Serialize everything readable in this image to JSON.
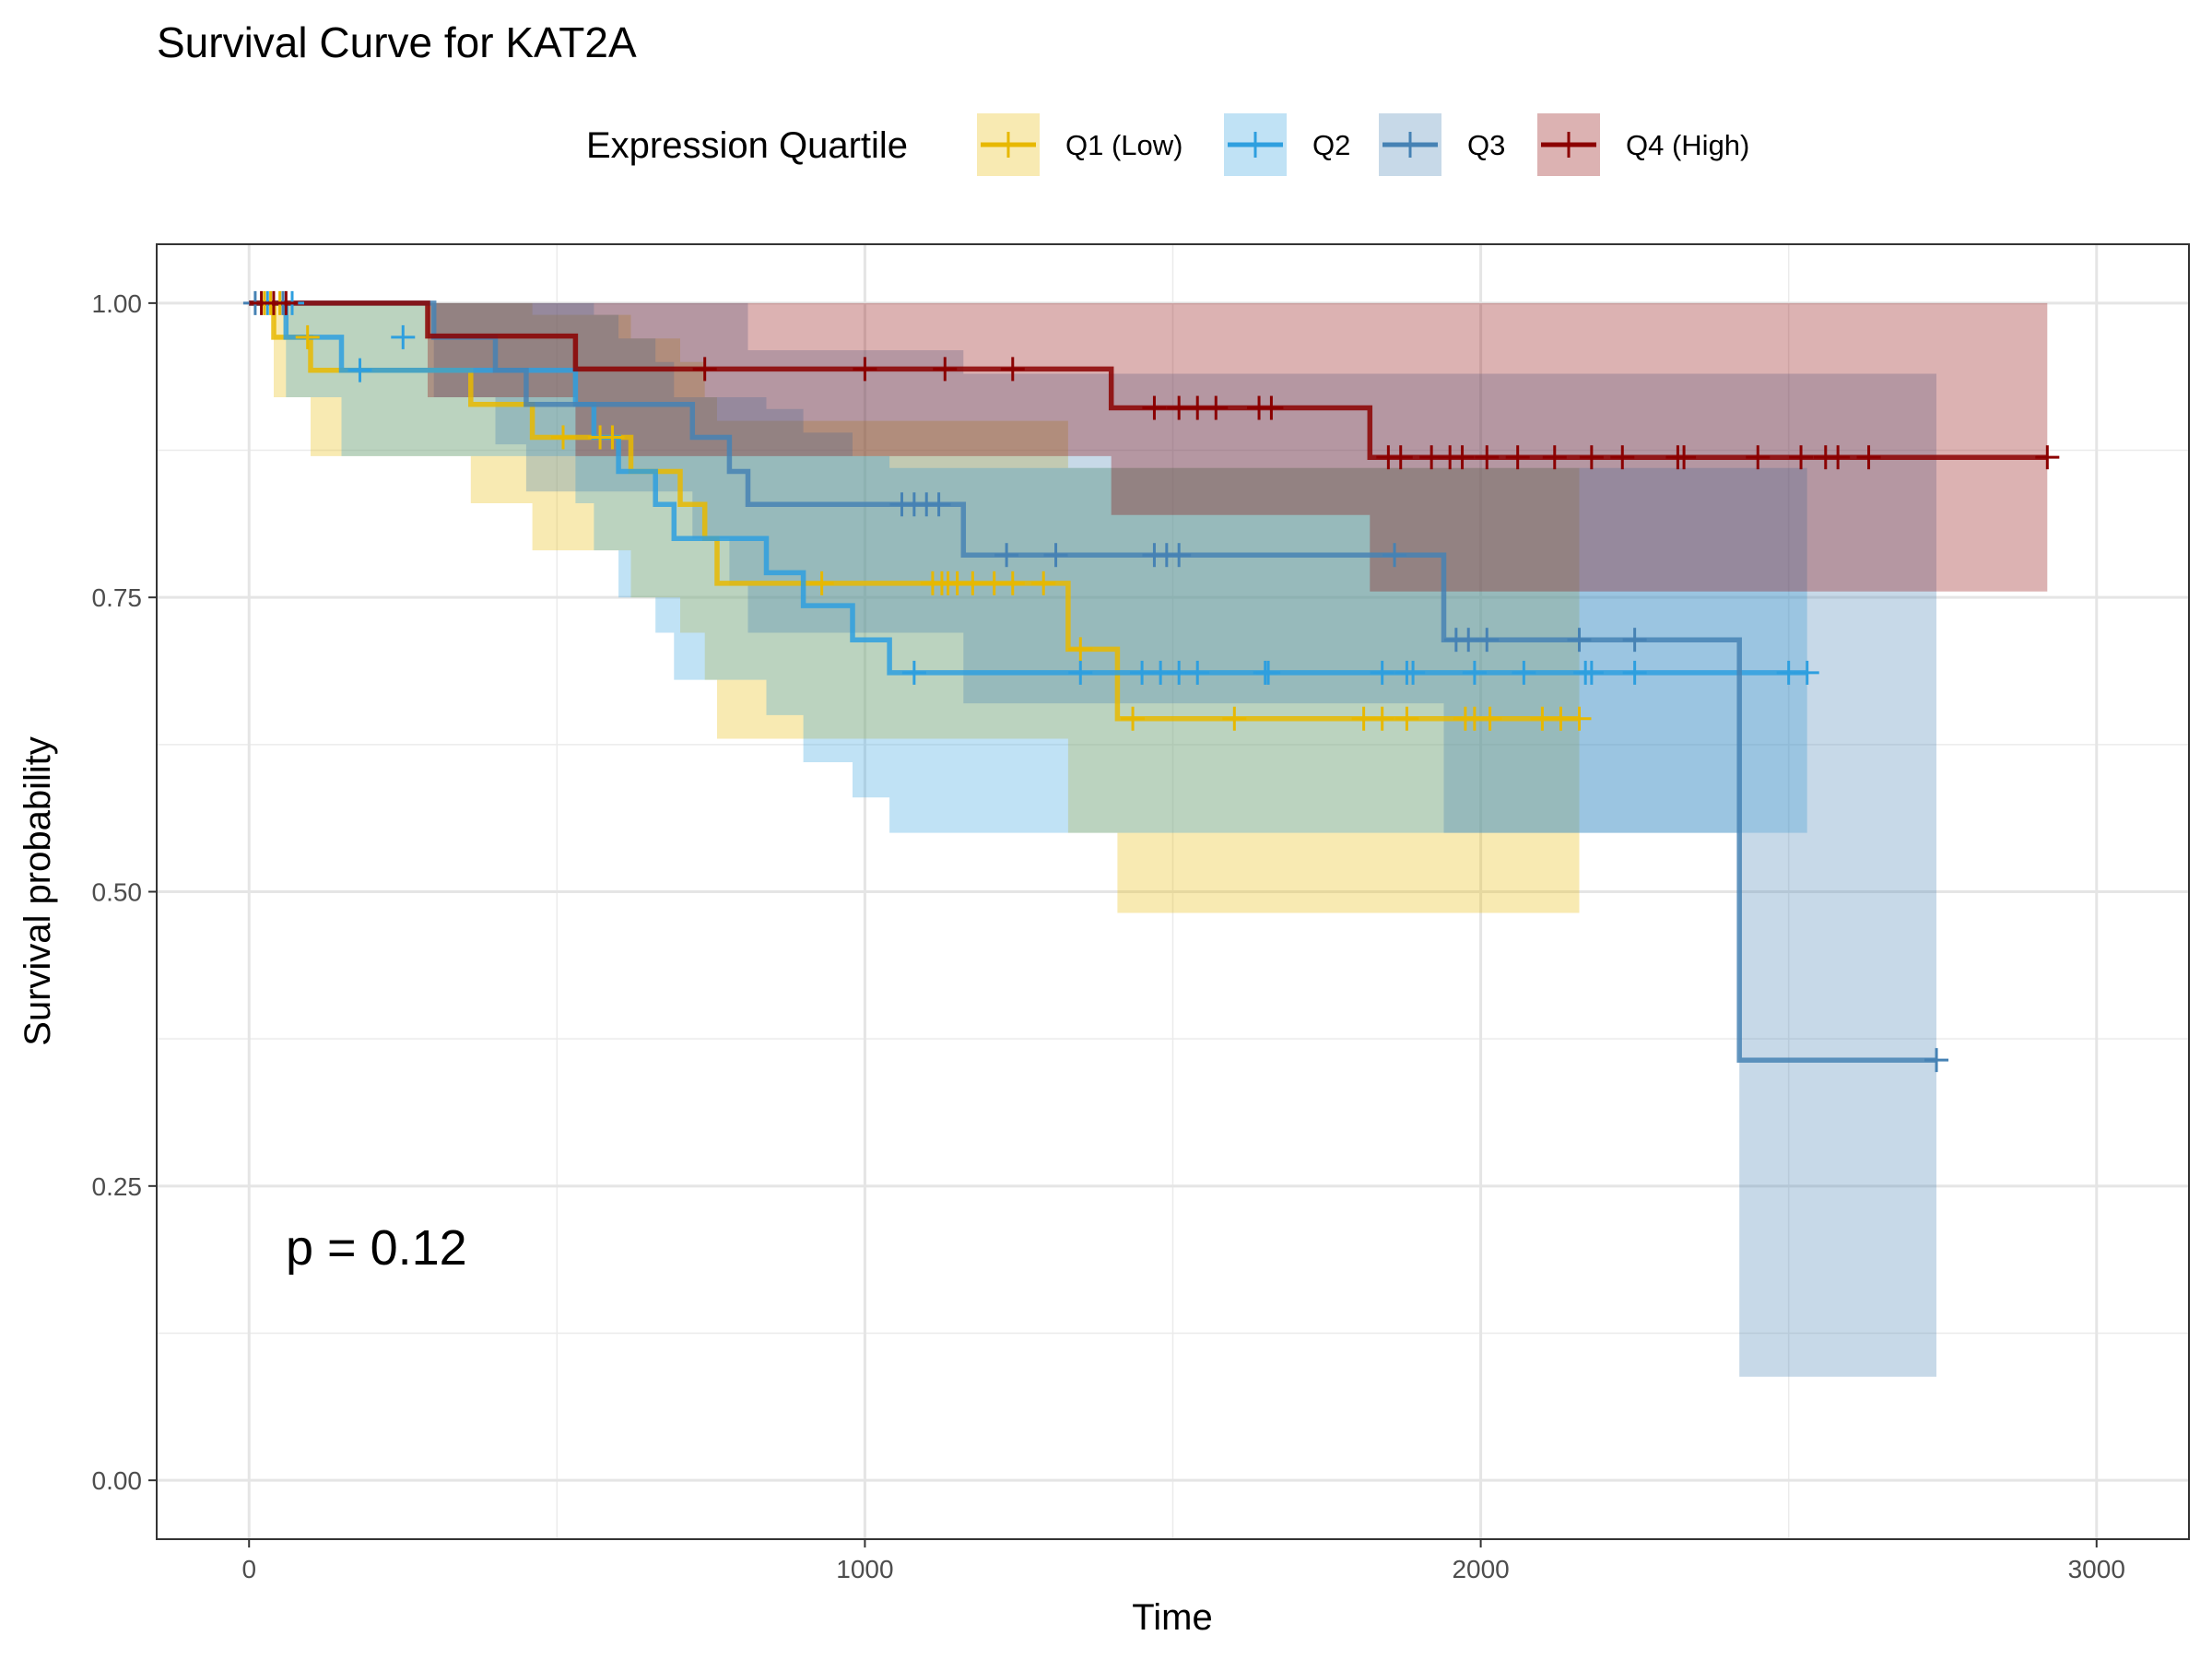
{
  "chart_data": {
    "type": "line",
    "subtype": "kaplan-meier",
    "title": "Survival Curve for KAT2A",
    "xlabel": "Time",
    "ylabel": "Survival probability",
    "xlim": [
      -150,
      3150
    ],
    "ylim": [
      -0.05,
      1.05
    ],
    "xticks": [
      0,
      1000,
      2000,
      3000
    ],
    "xtick_labels": [
      "0",
      "1000",
      "2000",
      "3000"
    ],
    "yticks": [
      0,
      0.25,
      0.5,
      0.75,
      1.0
    ],
    "ytick_labels": [
      "0.00",
      "0.25",
      "0.50",
      "0.75",
      "1.00"
    ],
    "grid": true,
    "legend": {
      "title": "Expression Quartile",
      "placement": "top"
    },
    "annotation": {
      "text": "p = 0.12",
      "x": 60,
      "y": 0.2
    },
    "series": [
      {
        "name": "Q1 (Low)",
        "color": "#E7B800",
        "steps": [
          [
            0,
            1.0
          ],
          [
            40,
            0.971
          ],
          [
            100,
            0.943
          ],
          [
            360,
            0.914
          ],
          [
            460,
            0.886
          ],
          [
            620,
            0.857
          ],
          [
            700,
            0.829
          ],
          [
            740,
            0.8
          ],
          [
            760,
            0.762
          ],
          [
            1330,
            0.706
          ],
          [
            1410,
            0.647
          ],
          [
            2160,
            0.647
          ]
        ],
        "lower": [
          [
            0,
            1.0
          ],
          [
            40,
            0.92
          ],
          [
            100,
            0.87
          ],
          [
            360,
            0.83
          ],
          [
            460,
            0.79
          ],
          [
            620,
            0.75
          ],
          [
            700,
            0.72
          ],
          [
            740,
            0.68
          ],
          [
            760,
            0.63
          ],
          [
            1330,
            0.55
          ],
          [
            1410,
            0.482
          ],
          [
            2160,
            0.482
          ]
        ],
        "upper": [
          [
            0,
            1.0
          ],
          [
            40,
            1.0
          ],
          [
            100,
            1.0
          ],
          [
            360,
            1.0
          ],
          [
            460,
            0.99
          ],
          [
            620,
            0.97
          ],
          [
            700,
            0.95
          ],
          [
            740,
            0.92
          ],
          [
            760,
            0.9
          ],
          [
            1330,
            0.86
          ],
          [
            1410,
            0.86
          ],
          [
            2160,
            0.86
          ]
        ],
        "censor": [
          [
            25,
            1.0
          ],
          [
            35,
            1.0
          ],
          [
            50,
            1.0
          ],
          [
            95,
            0.971
          ],
          [
            510,
            0.886
          ],
          [
            570,
            0.886
          ],
          [
            590,
            0.886
          ],
          [
            930,
            0.762
          ],
          [
            1110,
            0.762
          ],
          [
            1125,
            0.762
          ],
          [
            1135,
            0.762
          ],
          [
            1150,
            0.762
          ],
          [
            1175,
            0.762
          ],
          [
            1210,
            0.762
          ],
          [
            1240,
            0.762
          ],
          [
            1290,
            0.762
          ],
          [
            1350,
            0.706
          ],
          [
            1435,
            0.647
          ],
          [
            1600,
            0.647
          ],
          [
            1810,
            0.647
          ],
          [
            1840,
            0.647
          ],
          [
            1880,
            0.647
          ],
          [
            1975,
            0.647
          ],
          [
            1990,
            0.647
          ],
          [
            2015,
            0.647
          ],
          [
            2100,
            0.647
          ],
          [
            2130,
            0.647
          ],
          [
            2160,
            0.647
          ]
        ]
      },
      {
        "name": "Q2",
        "color": "#2E9FDF",
        "steps": [
          [
            0,
            1.0
          ],
          [
            60,
            0.971
          ],
          [
            150,
            0.943
          ],
          [
            530,
            0.914
          ],
          [
            560,
            0.886
          ],
          [
            600,
            0.857
          ],
          [
            660,
            0.829
          ],
          [
            690,
            0.8
          ],
          [
            840,
            0.771
          ],
          [
            900,
            0.743
          ],
          [
            980,
            0.714
          ],
          [
            1040,
            0.686
          ],
          [
            2530,
            0.686
          ]
        ],
        "lower": [
          [
            0,
            1.0
          ],
          [
            60,
            0.92
          ],
          [
            150,
            0.87
          ],
          [
            530,
            0.83
          ],
          [
            560,
            0.79
          ],
          [
            600,
            0.75
          ],
          [
            660,
            0.72
          ],
          [
            690,
            0.68
          ],
          [
            840,
            0.65
          ],
          [
            900,
            0.61
          ],
          [
            980,
            0.58
          ],
          [
            1040,
            0.55
          ],
          [
            2530,
            0.55
          ]
        ],
        "upper": [
          [
            0,
            1.0
          ],
          [
            60,
            1.0
          ],
          [
            150,
            1.0
          ],
          [
            530,
            1.0
          ],
          [
            560,
            0.99
          ],
          [
            600,
            0.97
          ],
          [
            660,
            0.95
          ],
          [
            690,
            0.92
          ],
          [
            840,
            0.91
          ],
          [
            900,
            0.89
          ],
          [
            980,
            0.87
          ],
          [
            1040,
            0.86
          ],
          [
            2530,
            0.86
          ]
        ],
        "censor": [
          [
            30,
            1.0
          ],
          [
            70,
            1.0
          ],
          [
            180,
            0.943
          ],
          [
            250,
            0.971
          ],
          [
            1080,
            0.686
          ],
          [
            1350,
            0.686
          ],
          [
            1450,
            0.686
          ],
          [
            1480,
            0.686
          ],
          [
            1510,
            0.686
          ],
          [
            1540,
            0.686
          ],
          [
            1650,
            0.686
          ],
          [
            1655,
            0.686
          ],
          [
            1840,
            0.686
          ],
          [
            1880,
            0.686
          ],
          [
            1890,
            0.686
          ],
          [
            1990,
            0.686
          ],
          [
            2070,
            0.686
          ],
          [
            2170,
            0.686
          ],
          [
            2180,
            0.686
          ],
          [
            2250,
            0.686
          ],
          [
            2500,
            0.686
          ],
          [
            2530,
            0.686
          ]
        ]
      },
      {
        "name": "Q3",
        "color": "#4682B4",
        "steps": [
          [
            0,
            1.0
          ],
          [
            300,
            0.971
          ],
          [
            400,
            0.943
          ],
          [
            450,
            0.914
          ],
          [
            720,
            0.886
          ],
          [
            780,
            0.857
          ],
          [
            810,
            0.829
          ],
          [
            1160,
            0.786
          ],
          [
            1940,
            0.714
          ],
          [
            2420,
            0.357
          ],
          [
            2740,
            0.357
          ]
        ],
        "lower": [
          [
            0,
            1.0
          ],
          [
            300,
            0.92
          ],
          [
            400,
            0.88
          ],
          [
            450,
            0.84
          ],
          [
            720,
            0.8
          ],
          [
            780,
            0.76
          ],
          [
            810,
            0.72
          ],
          [
            1160,
            0.66
          ],
          [
            1940,
            0.55
          ],
          [
            2420,
            0.088
          ],
          [
            2740,
            0.088
          ]
        ],
        "upper": [
          [
            0,
            1.0
          ],
          [
            300,
            1.0
          ],
          [
            400,
            1.0
          ],
          [
            450,
            1.0
          ],
          [
            720,
            1.0
          ],
          [
            780,
            1.0
          ],
          [
            810,
            0.96
          ],
          [
            1160,
            0.94
          ],
          [
            1940,
            0.94
          ],
          [
            2420,
            0.94
          ],
          [
            2740,
            0.94
          ]
        ],
        "censor": [
          [
            10,
            1.0
          ],
          [
            55,
            1.0
          ],
          [
            1060,
            0.829
          ],
          [
            1080,
            0.829
          ],
          [
            1100,
            0.829
          ],
          [
            1120,
            0.829
          ],
          [
            1230,
            0.786
          ],
          [
            1310,
            0.786
          ],
          [
            1470,
            0.786
          ],
          [
            1490,
            0.786
          ],
          [
            1510,
            0.786
          ],
          [
            1860,
            0.786
          ],
          [
            1960,
            0.714
          ],
          [
            1980,
            0.714
          ],
          [
            2010,
            0.714
          ],
          [
            2160,
            0.714
          ],
          [
            2250,
            0.714
          ],
          [
            2740,
            0.357
          ]
        ]
      },
      {
        "name": "Q4 (High)",
        "color": "#8B0000",
        "steps": [
          [
            0,
            1.0
          ],
          [
            290,
            0.972
          ],
          [
            530,
            0.944
          ],
          [
            1400,
            0.911
          ],
          [
            1820,
            0.869
          ],
          [
            2920,
            0.869
          ]
        ],
        "lower": [
          [
            0,
            1.0
          ],
          [
            290,
            0.92
          ],
          [
            530,
            0.87
          ],
          [
            1400,
            0.82
          ],
          [
            1820,
            0.755
          ],
          [
            2920,
            0.755
          ]
        ],
        "upper": [
          [
            0,
            1.0
          ],
          [
            290,
            1.0
          ],
          [
            530,
            1.0
          ],
          [
            1400,
            1.0
          ],
          [
            1820,
            1.0
          ],
          [
            2920,
            1.0
          ]
        ],
        "censor": [
          [
            20,
            1.0
          ],
          [
            40,
            1.0
          ],
          [
            60,
            1.0
          ],
          [
            740,
            0.944
          ],
          [
            1000,
            0.944
          ],
          [
            1130,
            0.944
          ],
          [
            1240,
            0.944
          ],
          [
            1470,
            0.911
          ],
          [
            1510,
            0.911
          ],
          [
            1540,
            0.911
          ],
          [
            1570,
            0.911
          ],
          [
            1640,
            0.911
          ],
          [
            1660,
            0.911
          ],
          [
            1850,
            0.869
          ],
          [
            1870,
            0.869
          ],
          [
            1920,
            0.869
          ],
          [
            1950,
            0.869
          ],
          [
            1970,
            0.869
          ],
          [
            2010,
            0.869
          ],
          [
            2060,
            0.869
          ],
          [
            2120,
            0.869
          ],
          [
            2180,
            0.869
          ],
          [
            2230,
            0.869
          ],
          [
            2320,
            0.869
          ],
          [
            2330,
            0.869
          ],
          [
            2450,
            0.869
          ],
          [
            2520,
            0.869
          ],
          [
            2560,
            0.869
          ],
          [
            2580,
            0.869
          ],
          [
            2630,
            0.869
          ],
          [
            2920,
            0.869
          ]
        ]
      }
    ]
  }
}
